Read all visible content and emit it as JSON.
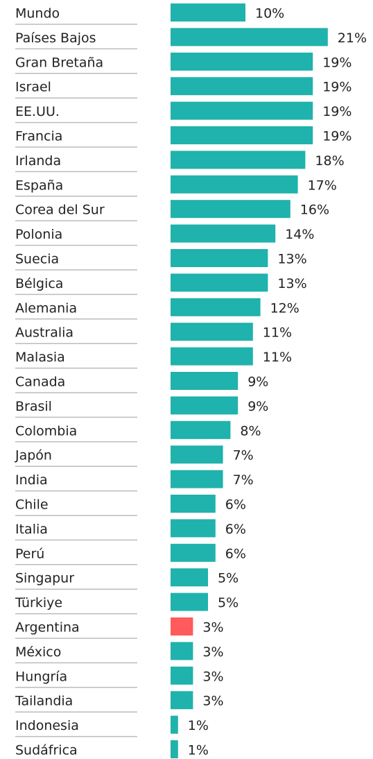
{
  "chart_data": {
    "type": "hbar",
    "categories": [
      "Mundo",
      "Países Bajos",
      "Gran Bretaña",
      "Israel",
      "EE.UU.",
      "Francia",
      "Irlanda",
      "España",
      "Corea del Sur",
      "Polonia",
      "Suecia",
      "Bélgica",
      "Alemania",
      "Australia",
      "Malasia",
      "Canada",
      "Brasil",
      "Colombia",
      "Japón",
      "India",
      "Chile",
      "Italia",
      "Perú",
      "Singapur",
      "Türkiye",
      "Argentina",
      "México",
      "Hungría",
      "Tailandia",
      "Indonesia",
      "Sudáfrica"
    ],
    "values": [
      10,
      21,
      19,
      19,
      19,
      19,
      18,
      17,
      16,
      14,
      13,
      13,
      12,
      11,
      11,
      9,
      9,
      8,
      7,
      7,
      6,
      6,
      6,
      5,
      5,
      3,
      3,
      3,
      3,
      1,
      1
    ],
    "value_labels": [
      "10%",
      "21%",
      "19%",
      "19%",
      "19%",
      "19%",
      "18%",
      "17%",
      "16%",
      "14%",
      "13%",
      "13%",
      "12%",
      "11%",
      "11%",
      "9%",
      "9%",
      "8%",
      "7%",
      "7%",
      "6%",
      "6%",
      "6%",
      "5%",
      "5%",
      "3%",
      "3%",
      "3%",
      "3%",
      "1%",
      "1%"
    ],
    "colors": [
      "#20b2ac",
      "#20b2ac",
      "#20b2ac",
      "#20b2ac",
      "#20b2ac",
      "#20b2ac",
      "#20b2ac",
      "#20b2ac",
      "#20b2ac",
      "#20b2ac",
      "#20b2ac",
      "#20b2ac",
      "#20b2ac",
      "#20b2ac",
      "#20b2ac",
      "#20b2ac",
      "#20b2ac",
      "#20b2ac",
      "#20b2ac",
      "#20b2ac",
      "#20b2ac",
      "#20b2ac",
      "#20b2ac",
      "#20b2ac",
      "#20b2ac",
      "#ff5a5c",
      "#20b2ac",
      "#20b2ac",
      "#20b2ac",
      "#20b2ac",
      "#20b2ac"
    ]
  }
}
